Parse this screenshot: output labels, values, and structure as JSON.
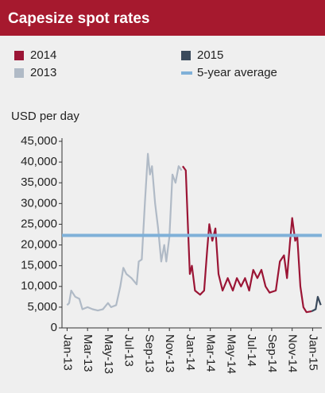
{
  "chart_data": {
    "type": "line",
    "title": "Capesize spot rates",
    "y_label": "USD per day",
    "series": [
      {
        "name": "2014",
        "color": "#9b1535",
        "x": [
          11.3,
          11.6,
          11.8,
          12.0,
          12.2,
          12.5,
          13.0,
          13.4,
          13.7,
          13.9,
          14.2,
          14.5,
          14.8,
          15.2,
          15.7,
          16.2,
          16.6,
          17.0,
          17.4,
          17.8,
          18.2,
          18.6,
          19.0,
          19.4,
          19.8,
          20.4,
          20.8,
          21.2,
          21.5,
          21.8,
          22.0,
          22.3,
          22.5,
          22.8,
          23.1,
          23.4,
          23.9
        ],
        "values": [
          39000,
          38000,
          25000,
          13000,
          15000,
          9000,
          8000,
          9000,
          19000,
          25000,
          21000,
          24000,
          13000,
          9000,
          12000,
          9000,
          12000,
          10000,
          12000,
          9000,
          14000,
          12000,
          14000,
          10000,
          8500,
          9000,
          16000,
          17500,
          12000,
          21000,
          26500,
          21000,
          22000,
          10000,
          5000,
          3800,
          4000
        ]
      },
      {
        "name": "2015",
        "color": "#3a4a5c",
        "x": [
          23.9,
          24.3,
          24.5,
          24.8
        ],
        "values": [
          4000,
          4500,
          7500,
          5500
        ]
      },
      {
        "name": "2013",
        "color": "#b0bac6",
        "x": [
          0,
          0.2,
          0.4,
          0.8,
          1.2,
          1.5,
          2.0,
          2.5,
          3.0,
          3.5,
          4.0,
          4.3,
          4.8,
          5.2,
          5.5,
          5.8,
          6.3,
          6.8,
          7.0,
          7.3,
          7.6,
          7.9,
          8.1,
          8.3,
          8.6,
          8.9,
          9.2,
          9.5,
          9.7,
          10.0,
          10.3,
          10.6,
          10.9,
          11.2
        ],
        "values": [
          5500,
          6000,
          9000,
          7500,
          7000,
          4500,
          5000,
          4500,
          4200,
          4500,
          6000,
          5000,
          5500,
          10000,
          14500,
          13000,
          12000,
          10500,
          16000,
          16500,
          30000,
          42000,
          37000,
          39000,
          30000,
          24000,
          16000,
          20000,
          16000,
          22000,
          37000,
          35000,
          39000,
          38000
        ]
      }
    ],
    "reference_lines": [
      {
        "name": "5-year average",
        "value": 22300,
        "color": "#7fb0d8"
      }
    ],
    "xlim": [
      -0.5,
      24.9
    ],
    "xticks": [
      {
        "value": 0,
        "label": "Jan-13"
      },
      {
        "value": 2,
        "label": "Mar-13"
      },
      {
        "value": 4,
        "label": "May-13"
      },
      {
        "value": 6,
        "label": "Jul-13"
      },
      {
        "value": 8,
        "label": "Sep-13"
      },
      {
        "value": 10,
        "label": "Nov-13"
      },
      {
        "value": 12,
        "label": "Jan-14"
      },
      {
        "value": 14,
        "label": "Mar-14"
      },
      {
        "value": 16,
        "label": "May-14"
      },
      {
        "value": 18,
        "label": "Jul-14"
      },
      {
        "value": 20,
        "label": "Sep-14"
      },
      {
        "value": 22,
        "label": "Nov-14"
      },
      {
        "value": 24,
        "label": "Jan-15"
      }
    ],
    "ylim": [
      0,
      45000
    ],
    "yticks": [
      0,
      {
        "value": 5000,
        "label": "5,000"
      },
      {
        "value": 10000,
        "label": "10,000"
      },
      {
        "value": 15000,
        "label": "15,000"
      },
      {
        "value": 20000,
        "label": "20,000"
      },
      {
        "value": 25000,
        "label": "25,000"
      },
      {
        "value": 30000,
        "label": "30,000"
      },
      {
        "value": 35000,
        "label": "35,000"
      },
      {
        "value": 40000,
        "label": "40,000"
      },
      {
        "value": 45000,
        "label": "45,000"
      }
    ]
  }
}
